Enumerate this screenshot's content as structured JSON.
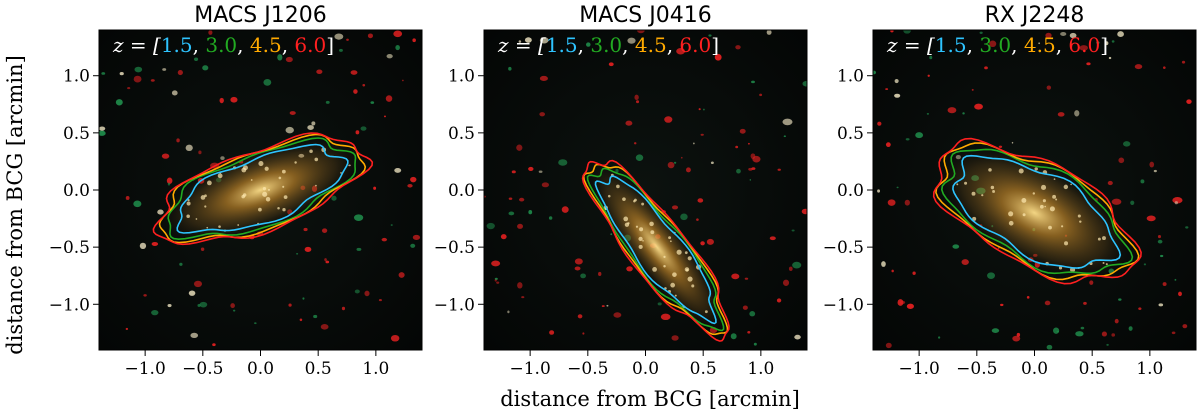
{
  "chart_data": [
    {
      "type": "image",
      "title": "MACS J1206",
      "xlabel": "",
      "ylabel": "distance from BCG [arcmin]",
      "xlim": [
        -1.4,
        1.4
      ],
      "ylim": [
        -1.4,
        1.4
      ],
      "xticks": [
        "−1.0",
        "−0.5",
        "0.0",
        "0.5",
        "1.0"
      ],
      "xtick_values": [
        -1.0,
        -0.5,
        0.0,
        0.5,
        1.0
      ],
      "yticks": [
        "1.0",
        "0.5",
        "0.0",
        "−0.5",
        "−1.0"
      ],
      "ytick_values": [
        1.0,
        0.5,
        0.0,
        -0.5,
        -1.0
      ],
      "contours_redshifts": [
        1.5,
        3.0,
        4.5,
        6.0
      ],
      "contour_colors": [
        "#2ec4ff",
        "#22aa22",
        "#ffaa00",
        "#ff2020"
      ],
      "contour_center": [
        0.0,
        0.0
      ],
      "contour_angle_deg": 20,
      "contour_semi_axes": [
        0.95,
        0.35
      ]
    },
    {
      "type": "image",
      "title": "MACS J0416",
      "xlabel": "distance from BCG [arcmin]",
      "ylabel": "",
      "xlim": [
        -1.4,
        1.4
      ],
      "ylim": [
        -1.4,
        1.4
      ],
      "xticks": [
        "−1.0",
        "−0.5",
        "0.0",
        "0.5",
        "1.0"
      ],
      "xtick_values": [
        -1.0,
        -0.5,
        0.0,
        0.5,
        1.0
      ],
      "yticks": [
        "1.0",
        "0.5",
        "0.0",
        "−0.5",
        "−1.0"
      ],
      "ytick_values": [
        1.0,
        0.5,
        0.0,
        -0.5,
        -1.0
      ],
      "contours_redshifts": [
        1.5,
        3.0,
        4.5,
        6.0
      ],
      "contour_colors": [
        "#2ec4ff",
        "#22aa22",
        "#ffaa00",
        "#ff2020"
      ],
      "contour_center": [
        0.1,
        -0.5
      ],
      "contour_angle_deg": -52,
      "contour_semi_axes": [
        0.95,
        0.25
      ]
    },
    {
      "type": "image",
      "title": "RX J2248",
      "xlabel": "",
      "ylabel": "",
      "xlim": [
        -1.4,
        1.4
      ],
      "ylim": [
        -1.4,
        1.4
      ],
      "xticks": [
        "−1.0",
        "−0.5",
        "0.0",
        "0.5",
        "1.0"
      ],
      "xtick_values": [
        -1.0,
        -0.5,
        0.0,
        0.5,
        1.0
      ],
      "yticks": [
        "1.0",
        "0.5",
        "0.0",
        "−0.5",
        "−1.0"
      ],
      "ytick_values": [
        1.0,
        0.5,
        0.0,
        -0.5,
        -1.0
      ],
      "contours_redshifts": [
        1.5,
        3.0,
        4.5,
        6.0
      ],
      "contour_colors": [
        "#2ec4ff",
        "#22aa22",
        "#ffaa00",
        "#ff2020"
      ],
      "contour_center": [
        0.0,
        -0.2
      ],
      "contour_angle_deg": -28,
      "contour_semi_axes": [
        0.95,
        0.45
      ]
    }
  ],
  "legend_text": {
    "prefix": "z = [",
    "values": [
      "1.5",
      "3.0",
      "4.5",
      "6.0"
    ],
    "suffix": "]"
  },
  "colors": {
    "background": "#050807",
    "galaxy_red": "#e02020",
    "galaxy_green": "#1f8a4a",
    "cluster_glow": "#c89030"
  }
}
